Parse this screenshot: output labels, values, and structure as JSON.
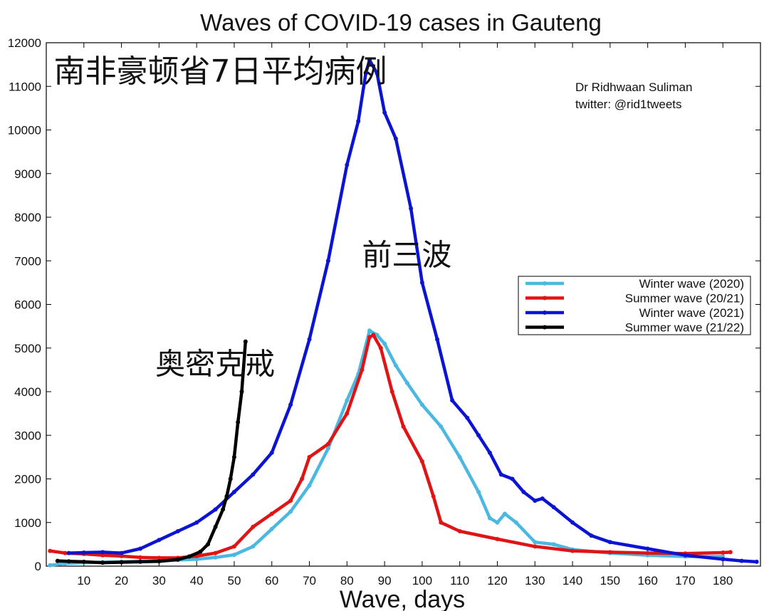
{
  "chart_data": {
    "type": "line",
    "title": "Waves of COVID-19 cases in Gauteng",
    "xlabel": "Wave, days",
    "ylabel": "",
    "xlim": [
      0,
      190
    ],
    "ylim": [
      0,
      12000
    ],
    "xticks": [
      10,
      20,
      30,
      40,
      50,
      60,
      70,
      80,
      90,
      100,
      110,
      120,
      130,
      140,
      150,
      160,
      170,
      180
    ],
    "yticks": [
      0,
      1000,
      2000,
      3000,
      4000,
      5000,
      6000,
      7000,
      8000,
      9000,
      10000,
      11000,
      12000
    ],
    "legend_position": "right",
    "annotations": [
      {
        "text": "南非豪顿省7日平均病例",
        "x": 2,
        "y": 11100
      },
      {
        "text": "前三波",
        "x": 84,
        "y": 6900
      },
      {
        "text": "奥密克戒",
        "x": 29,
        "y": 4400
      }
    ],
    "credit": [
      "Dr Ridhwaan Suliman",
      "twitter: @rid1tweets"
    ],
    "series": [
      {
        "name": "Winter wave (2020)",
        "color": "#4ab8e0",
        "points": [
          [
            1,
            20
          ],
          [
            5,
            60
          ],
          [
            10,
            80
          ],
          [
            15,
            90
          ],
          [
            20,
            100
          ],
          [
            25,
            110
          ],
          [
            30,
            120
          ],
          [
            35,
            140
          ],
          [
            40,
            160
          ],
          [
            45,
            200
          ],
          [
            50,
            260
          ],
          [
            55,
            450
          ],
          [
            60,
            850
          ],
          [
            65,
            1250
          ],
          [
            70,
            1850
          ],
          [
            75,
            2700
          ],
          [
            80,
            3800
          ],
          [
            83,
            4400
          ],
          [
            86,
            5400
          ],
          [
            88,
            5300
          ],
          [
            90,
            5100
          ],
          [
            93,
            4600
          ],
          [
            96,
            4200
          ],
          [
            100,
            3700
          ],
          [
            105,
            3200
          ],
          [
            110,
            2500
          ],
          [
            115,
            1700
          ],
          [
            118,
            1100
          ],
          [
            120,
            1000
          ],
          [
            122,
            1200
          ],
          [
            125,
            1000
          ],
          [
            130,
            550
          ],
          [
            135,
            500
          ],
          [
            140,
            380
          ],
          [
            150,
            300
          ],
          [
            160,
            250
          ],
          [
            170,
            220
          ],
          [
            180,
            220
          ]
        ]
      },
      {
        "name": "Summer wave (20/21)",
        "color": "#e01414",
        "points": [
          [
            1,
            350
          ],
          [
            5,
            300
          ],
          [
            10,
            280
          ],
          [
            15,
            250
          ],
          [
            20,
            230
          ],
          [
            25,
            200
          ],
          [
            30,
            190
          ],
          [
            35,
            190
          ],
          [
            40,
            230
          ],
          [
            45,
            300
          ],
          [
            50,
            450
          ],
          [
            55,
            900
          ],
          [
            60,
            1200
          ],
          [
            65,
            1500
          ],
          [
            68,
            2000
          ],
          [
            70,
            2500
          ],
          [
            75,
            2800
          ],
          [
            80,
            3500
          ],
          [
            84,
            4500
          ],
          [
            86,
            5250
          ],
          [
            87,
            5300
          ],
          [
            89,
            5000
          ],
          [
            92,
            4000
          ],
          [
            95,
            3200
          ],
          [
            100,
            2400
          ],
          [
            103,
            1600
          ],
          [
            105,
            1000
          ],
          [
            110,
            800
          ],
          [
            120,
            620
          ],
          [
            130,
            450
          ],
          [
            140,
            350
          ],
          [
            150,
            320
          ],
          [
            160,
            300
          ],
          [
            170,
            290
          ],
          [
            180,
            310
          ],
          [
            182,
            320
          ]
        ]
      },
      {
        "name": "Winter wave (2021)",
        "color": "#0c14d4",
        "points": [
          [
            6,
            300
          ],
          [
            10,
            310
          ],
          [
            15,
            320
          ],
          [
            20,
            300
          ],
          [
            25,
            400
          ],
          [
            30,
            600
          ],
          [
            35,
            800
          ],
          [
            40,
            1000
          ],
          [
            45,
            1300
          ],
          [
            50,
            1700
          ],
          [
            55,
            2100
          ],
          [
            60,
            2600
          ],
          [
            65,
            3700
          ],
          [
            70,
            5200
          ],
          [
            75,
            7000
          ],
          [
            80,
            9200
          ],
          [
            83,
            10200
          ],
          [
            85,
            11300
          ],
          [
            86,
            11600
          ],
          [
            88,
            11300
          ],
          [
            90,
            10400
          ],
          [
            93,
            9800
          ],
          [
            97,
            8200
          ],
          [
            100,
            6500
          ],
          [
            104,
            5200
          ],
          [
            108,
            3800
          ],
          [
            112,
            3400
          ],
          [
            115,
            3000
          ],
          [
            118,
            2600
          ],
          [
            121,
            2100
          ],
          [
            124,
            2000
          ],
          [
            127,
            1700
          ],
          [
            130,
            1500
          ],
          [
            132,
            1550
          ],
          [
            135,
            1350
          ],
          [
            140,
            1000
          ],
          [
            145,
            700
          ],
          [
            150,
            550
          ],
          [
            160,
            400
          ],
          [
            170,
            250
          ],
          [
            180,
            160
          ],
          [
            185,
            120
          ],
          [
            189,
            100
          ]
        ]
      },
      {
        "name": "Summer wave (21/22)",
        "color": "#000000",
        "points": [
          [
            3,
            120
          ],
          [
            6,
            110
          ],
          [
            10,
            100
          ],
          [
            15,
            80
          ],
          [
            20,
            90
          ],
          [
            25,
            100
          ],
          [
            30,
            110
          ],
          [
            35,
            150
          ],
          [
            38,
            220
          ],
          [
            41,
            330
          ],
          [
            43,
            500
          ],
          [
            45,
            900
          ],
          [
            47,
            1300
          ],
          [
            48,
            1600
          ],
          [
            49,
            2000
          ],
          [
            50,
            2500
          ],
          [
            51,
            3300
          ],
          [
            52,
            4000
          ],
          [
            53,
            5150
          ]
        ]
      }
    ]
  }
}
